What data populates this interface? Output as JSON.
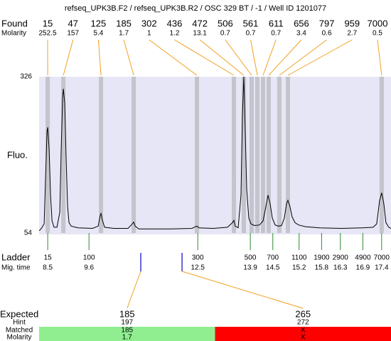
{
  "title": "refseq_UPK3B.F2 / refseq_UPK3B.R2 / OSC 329 BT / -1 / Well ID 1201077",
  "chart_data": {
    "type": "line",
    "ylabel": "Fluo.",
    "xlim": [
      8.27,
      17.65
    ],
    "ylim": [
      54,
      326
    ],
    "yticks": [
      54,
      326
    ],
    "x": [
      8.273,
      8.33,
      8.405,
      8.443,
      8.481,
      8.5,
      8.538,
      8.576,
      8.614,
      8.67,
      8.746,
      8.822,
      8.86,
      8.898,
      8.917,
      8.955,
      8.992,
      9.03,
      9.068,
      9.125,
      9.314,
      9.693,
      9.845,
      9.902,
      9.92,
      9.958,
      10.015,
      10.261,
      10.64,
      10.754,
      10.792,
      10.83,
      10.924,
      11.777,
      12.345,
      12.439,
      12.477,
      12.534,
      12.913,
      13.292,
      13.424,
      13.462,
      13.5,
      13.576,
      13.652,
      13.689,
      13.727,
      13.765,
      13.803,
      13.86,
      13.917,
      14.011,
      14.144,
      14.239,
      14.314,
      14.371,
      14.428,
      14.485,
      14.561,
      14.655,
      14.731,
      14.807,
      14.864,
      14.902,
      14.958,
      15.015,
      15.091,
      15.186,
      15.375,
      15.754,
      16.322,
      16.89,
      17.174,
      17.269,
      17.345,
      17.402,
      17.458,
      17.515,
      17.591,
      17.648
    ],
    "series": [
      {
        "color": "#000000",
        "values": [
          58,
          62,
          70,
          150,
          230,
          238,
          200,
          120,
          75,
          64,
          64,
          90,
          200,
          290,
          305,
          280,
          180,
          100,
          72,
          66,
          63,
          62,
          66,
          85,
          88,
          76,
          64,
          62,
          62,
          70,
          73,
          66,
          61,
          61,
          62,
          65,
          66,
          63,
          62,
          64,
          72,
          76,
          66,
          63,
          120,
          260,
          326,
          230,
          130,
          80,
          70,
          67,
          68,
          75,
          100,
          120,
          105,
          80,
          68,
          66,
          67,
          80,
          105,
          111,
          100,
          82,
          72,
          68,
          65,
          63,
          62,
          63,
          64,
          70,
          110,
          124,
          105,
          72,
          64,
          62
        ]
      }
    ]
  },
  "found": {
    "label": "Found",
    "molarity_label": "Molarity",
    "color": "#f0a020",
    "band_color": "#c4c4cc",
    "peaks": [
      {
        "size": 15,
        "molarity": 252.5,
        "time": 8.5
      },
      {
        "size": 47,
        "molarity": 157,
        "time": 8.917
      },
      {
        "size": 125,
        "molarity": 5.4,
        "time": 9.92
      },
      {
        "size": 185,
        "molarity": 1.7,
        "time": 10.792
      },
      {
        "size": 302,
        "molarity": 1,
        "time": 12.477
      },
      {
        "size": 436,
        "molarity": 1.2,
        "time": 13.462
      },
      {
        "size": 472,
        "molarity": 13.1,
        "time": 13.727
      },
      {
        "size": 506,
        "molarity": 0.7,
        "time": 13.936
      },
      {
        "size": 561,
        "molarity": 0.7,
        "time": 14.087
      },
      {
        "size": 611,
        "molarity": 0.7,
        "time": 14.239
      },
      {
        "size": 656,
        "molarity": 3.4,
        "time": 14.39
      },
      {
        "size": 797,
        "molarity": 0.6,
        "time": 14.674
      },
      {
        "size": 959,
        "molarity": 2.7,
        "time": 14.902
      },
      {
        "size": 7000,
        "molarity": 0.5,
        "time": 17.402
      }
    ]
  },
  "ladder": {
    "label": "Ladder",
    "time_label": "Mig. time",
    "color": "#2e8b2e",
    "sizes": [
      15,
      100,
      300,
      500,
      700,
      1100,
      1900,
      2900,
      4900,
      7000
    ],
    "times": [
      8.5,
      9.6,
      12.5,
      13.9,
      14.5,
      15.2,
      15.8,
      16.3,
      16.9,
      17.4
    ]
  },
  "expected": {
    "label": "Expected",
    "hint_label": "Hint",
    "matched_label": "Matched",
    "molarity_label": "Molarity",
    "marker_color": "#0000cc",
    "items": [
      {
        "size": 185,
        "hint": 197,
        "matched": 185,
        "molarity": 1.7,
        "time": 10.98,
        "color": "#90ee90"
      },
      {
        "size": 265,
        "hint": 272,
        "matched": "X",
        "molarity": "X",
        "time": 12.08,
        "color": "#ff0000"
      }
    ]
  }
}
